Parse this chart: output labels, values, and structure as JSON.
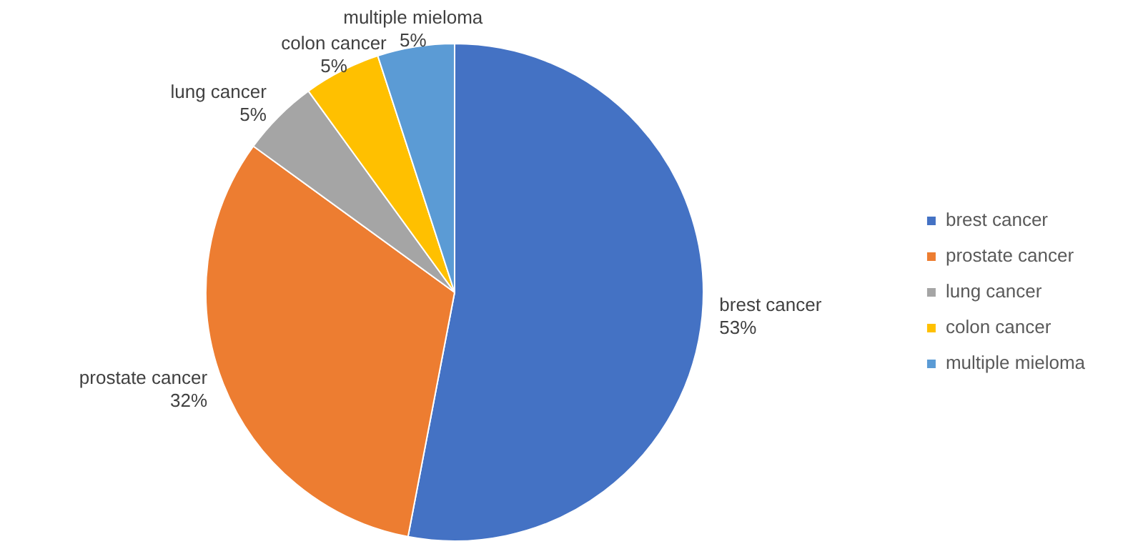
{
  "chart_data": {
    "type": "pie",
    "categories": [
      "brest cancer",
      "prostate cancer",
      "lung cancer",
      "colon cancer",
      "multiple mieloma"
    ],
    "values": [
      53,
      32,
      5,
      5,
      5
    ],
    "value_labels": [
      "53%",
      "32%",
      "5%",
      "5%",
      "5%"
    ],
    "colors": [
      "#4472c4",
      "#ed7d31",
      "#a5a5a5",
      "#ffc000",
      "#5b9bd5"
    ],
    "legend": "right"
  }
}
